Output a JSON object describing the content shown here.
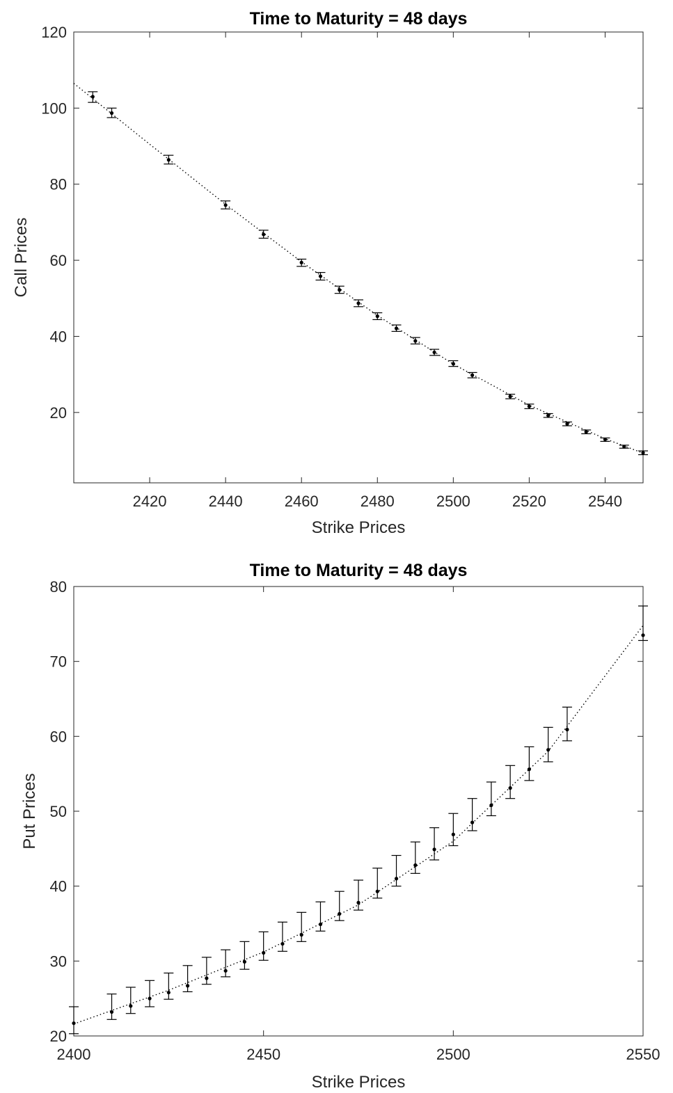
{
  "chart_data": [
    {
      "type": "scatter",
      "title": "Time to Maturity = 48 days",
      "xlabel": "Strike Prices",
      "ylabel": "Call Prices",
      "xlim": [
        2400,
        2550
      ],
      "ylim": [
        1.5,
        120
      ],
      "xticks": [
        "2420",
        "2440",
        "2460",
        "2480",
        "2500",
        "2520",
        "2540"
      ],
      "yticks": [
        "20",
        "40",
        "60",
        "80",
        "100",
        "120"
      ],
      "grid": false,
      "legend": "none",
      "points": {
        "x": [
          2405,
          2410,
          2425,
          2440,
          2450,
          2460,
          2465,
          2470,
          2475,
          2480,
          2485,
          2490,
          2495,
          2500,
          2505,
          2515,
          2520,
          2525,
          2530,
          2535,
          2540,
          2545,
          2550
        ],
        "y": [
          103.0,
          98.7,
          86.4,
          74.5,
          66.8,
          59.4,
          55.8,
          52.2,
          48.7,
          45.3,
          42.1,
          38.8,
          35.8,
          32.8,
          29.8,
          24.2,
          21.6,
          19.2,
          17.0,
          14.9,
          12.9,
          11.0,
          9.4
        ],
        "low": [
          101.5,
          97.5,
          85.3,
          73.5,
          65.8,
          58.4,
          54.8,
          51.3,
          47.8,
          44.4,
          41.3,
          38.0,
          35.0,
          32.1,
          29.1,
          23.6,
          21.0,
          18.7,
          16.5,
          14.4,
          12.4,
          10.6,
          8.9
        ],
        "high": [
          104.3,
          100.0,
          87.6,
          75.6,
          67.9,
          60.3,
          56.8,
          53.2,
          49.6,
          46.2,
          43.0,
          39.7,
          36.6,
          33.6,
          30.5,
          24.8,
          22.2,
          19.7,
          17.5,
          15.4,
          13.3,
          11.4,
          9.9
        ]
      },
      "fit_line": {
        "x": [
          2400,
          2420,
          2440,
          2460,
          2480,
          2500,
          2520,
          2540,
          2550
        ],
        "y": [
          106.5,
          90.5,
          74.7,
          59.6,
          45.5,
          32.7,
          21.9,
          13.1,
          9.3
        ],
        "style": "dotted"
      }
    },
    {
      "type": "scatter",
      "title": "Time to Maturity = 48 days",
      "xlabel": "Strike Prices",
      "ylabel": "Put Prices",
      "xlim": [
        2400,
        2550
      ],
      "ylim": [
        20,
        80
      ],
      "xticks": [
        "2400",
        "2450",
        "2500",
        "2550"
      ],
      "yticks": [
        "20",
        "30",
        "40",
        "50",
        "60",
        "70",
        "80"
      ],
      "grid": false,
      "legend": "none",
      "points": {
        "x": [
          2400,
          2410,
          2415,
          2420,
          2425,
          2430,
          2435,
          2440,
          2445,
          2450,
          2455,
          2460,
          2465,
          2470,
          2475,
          2480,
          2485,
          2490,
          2495,
          2500,
          2505,
          2510,
          2515,
          2520,
          2525,
          2530,
          2550
        ],
        "y": [
          21.7,
          23.2,
          24.0,
          25.0,
          25.8,
          26.7,
          27.7,
          28.7,
          29.9,
          31.1,
          32.3,
          33.5,
          34.9,
          36.3,
          37.8,
          39.3,
          41.0,
          42.8,
          44.9,
          46.9,
          48.5,
          50.8,
          53.1,
          55.6,
          58.2,
          60.9,
          73.5
        ],
        "low": [
          20.3,
          22.2,
          23.0,
          23.9,
          24.9,
          25.9,
          26.9,
          27.9,
          28.9,
          30.1,
          31.3,
          32.6,
          34.0,
          35.4,
          36.8,
          38.4,
          40.0,
          41.7,
          43.5,
          45.4,
          47.4,
          49.4,
          51.7,
          54.1,
          56.6,
          59.4,
          72.8
        ],
        "high": [
          23.9,
          25.6,
          26.5,
          27.4,
          28.4,
          29.4,
          30.5,
          31.5,
          32.6,
          33.9,
          35.2,
          36.5,
          37.9,
          39.3,
          40.8,
          42.4,
          44.1,
          45.9,
          47.8,
          49.7,
          51.7,
          53.9,
          56.1,
          58.6,
          61.2,
          63.9,
          77.4
        ]
      },
      "fit_line": {
        "x": [
          2400,
          2425,
          2450,
          2475,
          2500,
          2525,
          2550
        ],
        "y": [
          21.6,
          26.1,
          31.2,
          37.5,
          46.0,
          58.0,
          74.8
        ],
        "style": "dotted"
      }
    }
  ]
}
